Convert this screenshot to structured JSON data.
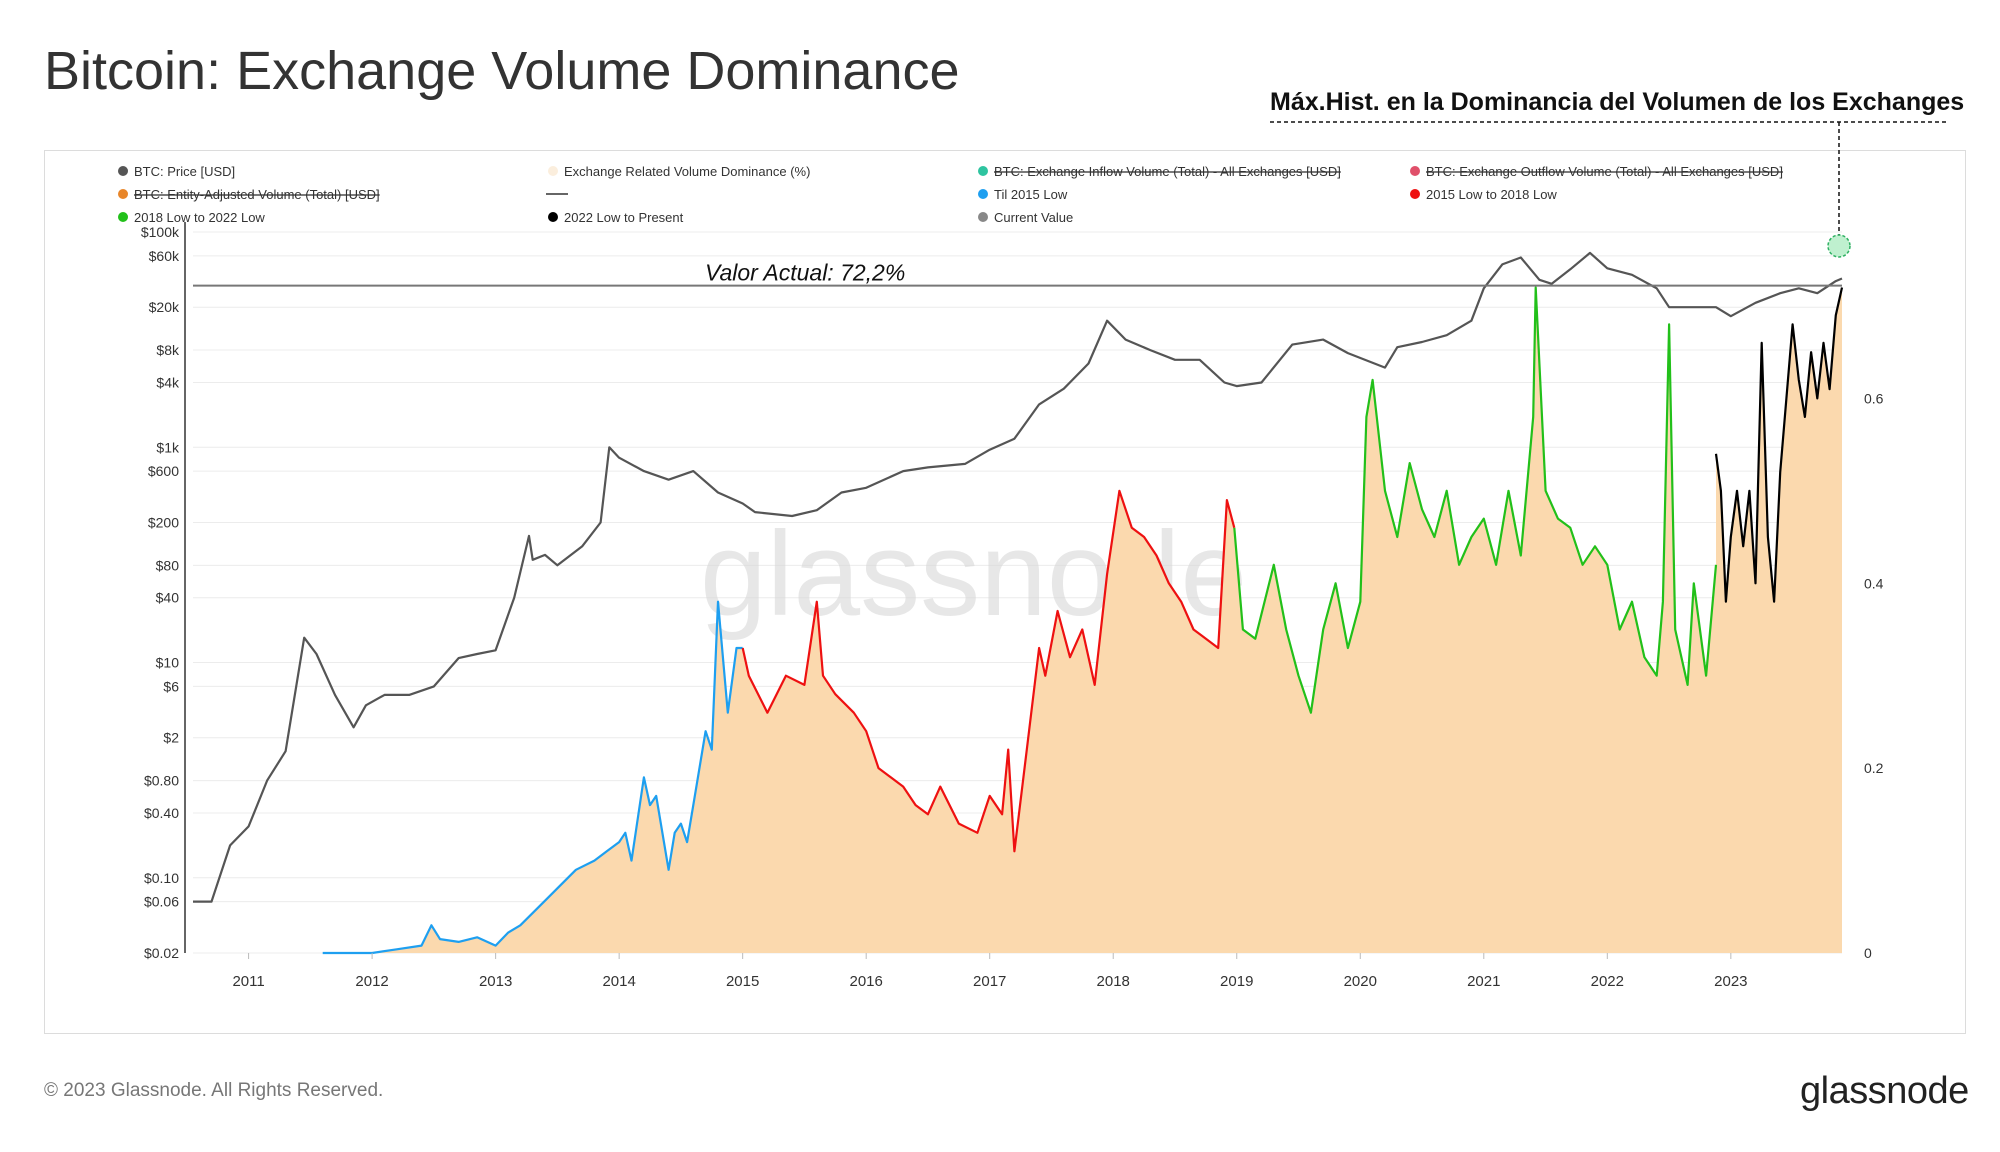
{
  "header": {
    "title": "Bitcoin: Exchange Volume Dominance"
  },
  "annotation": {
    "ath_label": "Máx.Hist. en la Dominancia del Volumen de los Exchanges",
    "current_label": "Valor Actual: 72,2%"
  },
  "footer": {
    "copyright": "© 2023 Glassnode. All Rights Reserved.",
    "brand": "glassnode"
  },
  "watermark": "glassnode",
  "colors": {
    "price": "#555555",
    "fill": "#fbd9ae",
    "blue": "#1e9ff0",
    "red": "#ee1111",
    "green": "#22c01a",
    "black": "#000000",
    "ref": "#777777"
  },
  "chart_data": {
    "type": "line",
    "title": "Bitcoin: Exchange Volume Dominance",
    "x_ticks": [
      "2011",
      "2012",
      "2013",
      "2014",
      "2015",
      "2016",
      "2017",
      "2018",
      "2019",
      "2020",
      "2021",
      "2022",
      "2023"
    ],
    "x_range": [
      2010.55,
      2023.9
    ],
    "left_axis": {
      "scale": "log",
      "label": "BTC: Price [USD]",
      "ticks": [
        "$100k",
        "$60k",
        "$20k",
        "$8k",
        "$4k",
        "$1k",
        "$600",
        "$200",
        "$80",
        "$40",
        "$10",
        "$6",
        "$2",
        "$0.80",
        "$0.40",
        "$0.10",
        "$0.06",
        "$0.02"
      ],
      "tick_values": [
        100000,
        60000,
        20000,
        8000,
        4000,
        1000,
        600,
        200,
        80,
        40,
        10,
        6,
        2,
        0.8,
        0.4,
        0.1,
        0.06,
        0.02
      ],
      "range": [
        0.02,
        100000
      ]
    },
    "right_axis": {
      "label": "Exchange Related Volume Dominance (%)",
      "ticks": [
        "0.6",
        "0.4",
        "0.2",
        "0"
      ],
      "tick_values": [
        0.6,
        0.4,
        0.2,
        0
      ],
      "range": [
        0,
        0.78
      ]
    },
    "legend": [
      {
        "label": "BTC: Price [USD]",
        "color": "#555555",
        "struck": false
      },
      {
        "label": "Exchange Related Volume Dominance (%)",
        "color": "#fbeedd",
        "struck": false
      },
      {
        "label": "BTC: Exchange Inflow Volume (Total) - All Exchanges [USD]",
        "color": "#2ec4a0",
        "struck": true
      },
      {
        "label": "BTC: Exchange Outflow Volume (Total) - All Exchanges [USD]",
        "color": "#e0506a",
        "struck": true
      },
      {
        "label": "BTC: Entity-Adjusted Volume (Total) [USD]",
        "color": "#e8862a",
        "struck": true
      },
      {
        "label": "",
        "color": "#333333",
        "struck": false,
        "line": true
      },
      {
        "label": "Til 2015 Low",
        "color": "#1e9ff0",
        "struck": false
      },
      {
        "label": "2015 Low to 2018 Low",
        "color": "#ee1111",
        "struck": false
      },
      {
        "label": "2018 Low to 2022 Low",
        "color": "#22c01a",
        "struck": false
      },
      {
        "label": "2022 Low to Present",
        "color": "#000000",
        "struck": false
      },
      {
        "label": "Current Value",
        "color": "#888888",
        "struck": false
      }
    ],
    "series": [
      {
        "name": "BTC: Price [USD]",
        "axis": "left",
        "x": [
          2010.55,
          2010.7,
          2010.85,
          2011.0,
          2011.15,
          2011.3,
          2011.45,
          2011.55,
          2011.7,
          2011.85,
          2011.95,
          2012.1,
          2012.3,
          2012.5,
          2012.7,
          2012.85,
          2013.0,
          2013.15,
          2013.27,
          2013.3,
          2013.4,
          2013.5,
          2013.7,
          2013.85,
          2013.92,
          2014.0,
          2014.2,
          2014.4,
          2014.6,
          2014.8,
          2015.0,
          2015.1,
          2015.4,
          2015.6,
          2015.8,
          2016.0,
          2016.3,
          2016.5,
          2016.8,
          2017.0,
          2017.2,
          2017.4,
          2017.6,
          2017.8,
          2017.95,
          2018.1,
          2018.3,
          2018.5,
          2018.7,
          2018.9,
          2019.0,
          2019.2,
          2019.45,
          2019.7,
          2019.9,
          2020.2,
          2020.3,
          2020.5,
          2020.7,
          2020.9,
          2021.0,
          2021.15,
          2021.3,
          2021.45,
          2021.55,
          2021.7,
          2021.86,
          2022.0,
          2022.2,
          2022.4,
          2022.5,
          2022.7,
          2022.88,
          2023.0,
          2023.2,
          2023.4,
          2023.55,
          2023.7,
          2023.85,
          2023.9
        ],
        "values": [
          0.06,
          0.06,
          0.2,
          0.3,
          0.8,
          1.5,
          17,
          12,
          5,
          2.5,
          4,
          5,
          5,
          6,
          11,
          12,
          13,
          40,
          150,
          90,
          100,
          80,
          120,
          200,
          1000,
          800,
          600,
          500,
          600,
          380,
          300,
          250,
          230,
          260,
          380,
          420,
          600,
          650,
          700,
          950,
          1200,
          2500,
          3500,
          6000,
          15000,
          10000,
          8000,
          6500,
          6500,
          4000,
          3700,
          4000,
          9000,
          10000,
          7500,
          5500,
          8500,
          9500,
          11000,
          15000,
          30000,
          50000,
          58000,
          36000,
          33000,
          45000,
          64000,
          46000,
          40000,
          30000,
          20000,
          20000,
          20000,
          16500,
          22000,
          27000,
          30000,
          27000,
          35000,
          37000
        ]
      },
      {
        "name": "Exchange Related Volume Dominance (%)",
        "axis": "right",
        "segments": [
          {
            "name": "Til 2015 Low",
            "color": "#1e9ff0",
            "x": [
              2011.6,
              2012.0,
              2012.2,
              2012.4,
              2012.48,
              2012.55,
              2012.7,
              2012.85,
              2013.0,
              2013.1,
              2013.2,
              2013.35,
              2013.5,
              2013.65,
              2013.8,
              2013.9,
              2014.0,
              2014.05,
              2014.1,
              2014.2,
              2014.25,
              2014.3,
              2014.4,
              2014.45,
              2014.5,
              2014.55,
              2014.6,
              2014.7,
              2014.75,
              2014.8,
              2014.88,
              2014.95,
              2015.0
            ],
            "values": [
              0,
              0,
              0.004,
              0.008,
              0.03,
              0.015,
              0.012,
              0.017,
              0.008,
              0.022,
              0.03,
              0.05,
              0.07,
              0.09,
              0.1,
              0.11,
              0.12,
              0.13,
              0.1,
              0.19,
              0.16,
              0.17,
              0.09,
              0.13,
              0.14,
              0.12,
              0.16,
              0.24,
              0.22,
              0.38,
              0.26,
              0.33,
              0.33
            ]
          },
          {
            "name": "2015 Low to 2018 Low",
            "color": "#ee1111",
            "x": [
              2015.0,
              2015.05,
              2015.2,
              2015.35,
              2015.5,
              2015.6,
              2015.65,
              2015.75,
              2015.9,
              2016.0,
              2016.1,
              2016.2,
              2016.3,
              2016.4,
              2016.5,
              2016.6,
              2016.75,
              2016.9,
              2017.0,
              2017.1,
              2017.15,
              2017.2,
              2017.3,
              2017.4,
              2017.45,
              2017.55,
              2017.65,
              2017.75,
              2017.85,
              2017.95,
              2018.05,
              2018.15,
              2018.25,
              2018.35,
              2018.45,
              2018.55,
              2018.65,
              2018.75,
              2018.85,
              2018.92,
              2018.98
            ],
            "values": [
              0.33,
              0.3,
              0.26,
              0.3,
              0.29,
              0.38,
              0.3,
              0.28,
              0.26,
              0.24,
              0.2,
              0.19,
              0.18,
              0.16,
              0.15,
              0.18,
              0.14,
              0.13,
              0.17,
              0.15,
              0.22,
              0.11,
              0.22,
              0.33,
              0.3,
              0.37,
              0.32,
              0.35,
              0.29,
              0.41,
              0.5,
              0.46,
              0.45,
              0.43,
              0.4,
              0.38,
              0.35,
              0.34,
              0.33,
              0.49,
              0.46
            ]
          },
          {
            "name": "2018 Low to 2022 Low",
            "color": "#22c01a",
            "x": [
              2018.98,
              2019.05,
              2019.15,
              2019.3,
              2019.4,
              2019.5,
              2019.6,
              2019.7,
              2019.8,
              2019.9,
              2020.0,
              2020.05,
              2020.1,
              2020.2,
              2020.3,
              2020.4,
              2020.5,
              2020.6,
              2020.7,
              2020.8,
              2020.9,
              2021.0,
              2021.1,
              2021.2,
              2021.3,
              2021.4,
              2021.42,
              2021.5,
              2021.6,
              2021.7,
              2021.8,
              2021.9,
              2022.0,
              2022.1,
              2022.2,
              2022.3,
              2022.4,
              2022.45,
              2022.5,
              2022.55,
              2022.6,
              2022.65,
              2022.7,
              2022.8,
              2022.88
            ],
            "values": [
              0.46,
              0.35,
              0.34,
              0.42,
              0.35,
              0.3,
              0.26,
              0.35,
              0.4,
              0.33,
              0.38,
              0.58,
              0.62,
              0.5,
              0.45,
              0.53,
              0.48,
              0.45,
              0.5,
              0.42,
              0.45,
              0.47,
              0.42,
              0.5,
              0.43,
              0.58,
              0.72,
              0.5,
              0.47,
              0.46,
              0.42,
              0.44,
              0.42,
              0.35,
              0.38,
              0.32,
              0.3,
              0.38,
              0.68,
              0.35,
              0.32,
              0.29,
              0.4,
              0.3,
              0.42
            ]
          },
          {
            "name": "2022 Low to Present",
            "color": "#000000",
            "x": [
              2022.88,
              2022.92,
              2022.96,
              2023.0,
              2023.05,
              2023.1,
              2023.15,
              2023.2,
              2023.25,
              2023.3,
              2023.35,
              2023.4,
              2023.45,
              2023.5,
              2023.55,
              2023.6,
              2023.65,
              2023.7,
              2023.75,
              2023.8,
              2023.85,
              2023.9
            ],
            "values": [
              0.54,
              0.5,
              0.38,
              0.45,
              0.5,
              0.44,
              0.5,
              0.4,
              0.66,
              0.45,
              0.38,
              0.52,
              0.6,
              0.68,
              0.62,
              0.58,
              0.65,
              0.6,
              0.66,
              0.61,
              0.69,
              0.72
            ]
          }
        ]
      },
      {
        "name": "Current Value",
        "axis": "right",
        "values": [
          0.722
        ]
      }
    ]
  }
}
